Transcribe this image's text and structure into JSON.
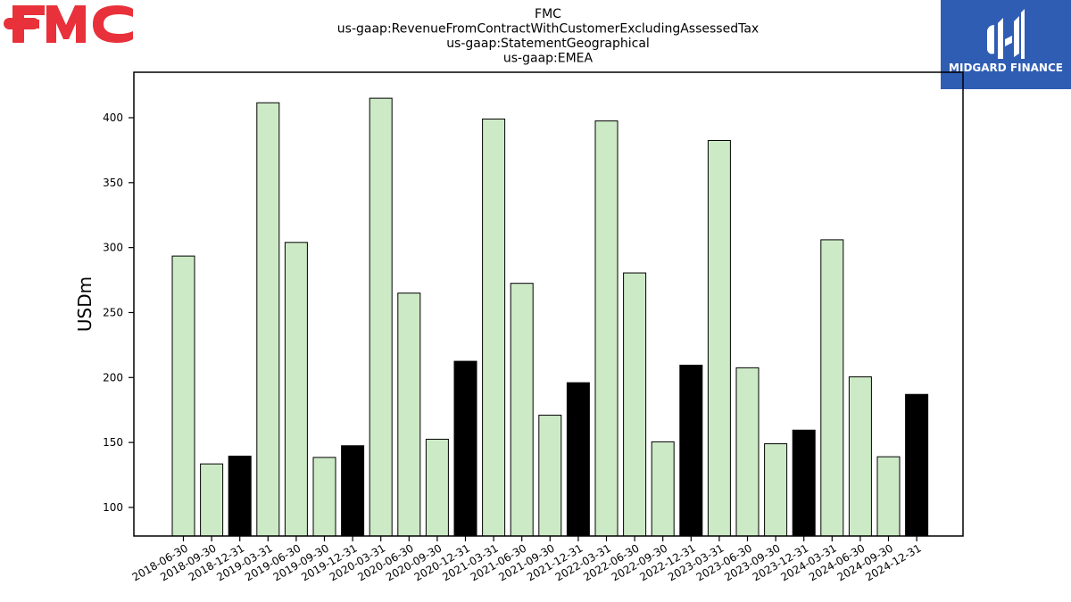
{
  "header": {
    "brand_logo": "fmc-logo",
    "partner_logo": "midgard-finance-logo",
    "partner_logo_text": "MIDGARD FINANCE"
  },
  "colors": {
    "bar_default": "#cdeac6",
    "bar_highlight": "#000000",
    "bar_edge": "#000000",
    "fmc_red": "#e8313a",
    "midgard_blue": "#2f5db3"
  },
  "chart_data": {
    "type": "bar",
    "title_lines": [
      "FMC",
      "us-gaap:RevenueFromContractWithCustomerExcludingAssessedTax",
      "us-gaap:StatementGeographical",
      "us-gaap:EMEA"
    ],
    "xlabel": "",
    "ylabel": "USDm",
    "ylim": [
      78,
      435
    ],
    "yticks": [
      100,
      150,
      200,
      250,
      300,
      350,
      400
    ],
    "grid": false,
    "categories": [
      "2018-06-30",
      "2018-09-30",
      "2018-12-31",
      "2019-03-31",
      "2019-06-30",
      "2019-09-30",
      "2019-12-31",
      "2020-03-31",
      "2020-06-30",
      "2020-09-30",
      "2020-12-31",
      "2021-03-31",
      "2021-06-30",
      "2021-09-30",
      "2021-12-31",
      "2022-03-31",
      "2022-06-30",
      "2022-09-30",
      "2022-12-31",
      "2023-03-31",
      "2023-06-30",
      "2023-09-30",
      "2023-12-31",
      "2024-03-31",
      "2024-06-30",
      "2024-09-30",
      "2024-12-31"
    ],
    "values": [
      293.5,
      133.5,
      139.5,
      411.5,
      304,
      138.5,
      147.5,
      415,
      265,
      152.5,
      212.5,
      399,
      272.5,
      171,
      196,
      397.5,
      280.5,
      150.5,
      209.5,
      382.5,
      207.5,
      149,
      159.5,
      306,
      200.5,
      139,
      187
    ],
    "highlighted": [
      false,
      false,
      true,
      false,
      false,
      false,
      true,
      false,
      false,
      false,
      true,
      false,
      false,
      false,
      true,
      false,
      false,
      false,
      true,
      false,
      false,
      false,
      true,
      false,
      false,
      false,
      true
    ]
  }
}
